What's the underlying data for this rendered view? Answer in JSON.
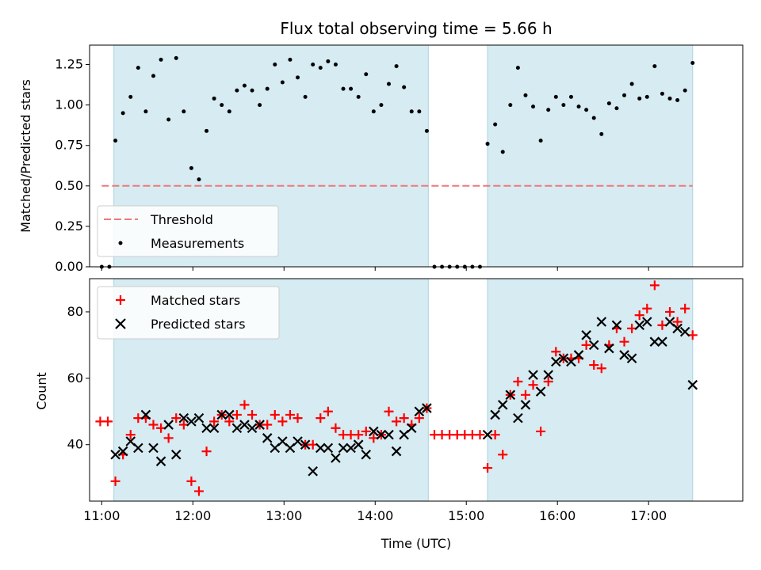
{
  "chart_data": {
    "title": "Flux total observing time = 5.66 h",
    "xlabel": "Time (UTC)",
    "xticks": [
      "11:00",
      "12:00",
      "13:00",
      "14:00",
      "15:00",
      "16:00",
      "17:00"
    ],
    "xlim": [
      "10:52",
      "18:02"
    ],
    "observing_windows": [
      {
        "start": "11:08",
        "end": "14:35"
      },
      {
        "start": "15:14",
        "end": "17:29"
      }
    ],
    "panels": [
      {
        "type": "scatter",
        "ylabel": "Matched/Predicted stars",
        "ylim": [
          0,
          1.37
        ],
        "yticks": [
          "0.00",
          "0.25",
          "0.50",
          "0.75",
          "1.00",
          "1.25"
        ],
        "threshold": {
          "name": "Threshold",
          "value": 0.5,
          "x_start": "11:00",
          "x_end": "17:29",
          "color": "#f07878"
        },
        "legend": {
          "position": "lower-left",
          "entries": [
            "Threshold",
            "Measurements"
          ]
        },
        "series": [
          {
            "name": "Measurements",
            "marker": "dot",
            "color": "#000000",
            "points": [
              [
                "11:00",
                0.0
              ],
              [
                "11:05",
                0.0
              ],
              [
                "11:09",
                0.78
              ],
              [
                "11:14",
                0.95
              ],
              [
                "11:19",
                1.05
              ],
              [
                "11:24",
                1.23
              ],
              [
                "11:29",
                0.96
              ],
              [
                "11:34",
                1.18
              ],
              [
                "11:39",
                1.28
              ],
              [
                "11:44",
                0.91
              ],
              [
                "11:49",
                1.29
              ],
              [
                "11:54",
                0.96
              ],
              [
                "11:59",
                0.61
              ],
              [
                "12:04",
                0.54
              ],
              [
                "12:09",
                0.84
              ],
              [
                "12:14",
                1.04
              ],
              [
                "12:19",
                1.0
              ],
              [
                "12:24",
                0.96
              ],
              [
                "12:29",
                1.09
              ],
              [
                "12:34",
                1.12
              ],
              [
                "12:39",
                1.09
              ],
              [
                "12:44",
                1.0
              ],
              [
                "12:49",
                1.1
              ],
              [
                "12:54",
                1.25
              ],
              [
                "12:59",
                1.14
              ],
              [
                "13:04",
                1.28
              ],
              [
                "13:09",
                1.17
              ],
              [
                "13:14",
                1.05
              ],
              [
                "13:19",
                1.25
              ],
              [
                "13:24",
                1.23
              ],
              [
                "13:29",
                1.27
              ],
              [
                "13:34",
                1.25
              ],
              [
                "13:39",
                1.1
              ],
              [
                "13:44",
                1.1
              ],
              [
                "13:49",
                1.05
              ],
              [
                "13:54",
                1.19
              ],
              [
                "13:59",
                0.96
              ],
              [
                "14:04",
                1.0
              ],
              [
                "14:09",
                1.13
              ],
              [
                "14:14",
                1.24
              ],
              [
                "14:19",
                1.11
              ],
              [
                "14:24",
                0.96
              ],
              [
                "14:29",
                0.96
              ],
              [
                "14:34",
                0.84
              ],
              [
                "14:39",
                0.0
              ],
              [
                "14:44",
                0.0
              ],
              [
                "14:49",
                0.0
              ],
              [
                "14:54",
                0.0
              ],
              [
                "14:59",
                0.0
              ],
              [
                "15:04",
                0.0
              ],
              [
                "15:09",
                0.0
              ],
              [
                "15:14",
                0.76
              ],
              [
                "15:19",
                0.88
              ],
              [
                "15:24",
                0.71
              ],
              [
                "15:29",
                1.0
              ],
              [
                "15:34",
                1.23
              ],
              [
                "15:39",
                1.06
              ],
              [
                "15:44",
                0.99
              ],
              [
                "15:49",
                0.78
              ],
              [
                "15:54",
                0.97
              ],
              [
                "15:59",
                1.05
              ],
              [
                "16:04",
                1.0
              ],
              [
                "16:09",
                1.05
              ],
              [
                "16:14",
                0.99
              ],
              [
                "16:19",
                0.97
              ],
              [
                "16:24",
                0.92
              ],
              [
                "16:29",
                0.82
              ],
              [
                "16:34",
                1.01
              ],
              [
                "16:39",
                0.98
              ],
              [
                "16:44",
                1.06
              ],
              [
                "16:49",
                1.13
              ],
              [
                "16:54",
                1.04
              ],
              [
                "16:59",
                1.05
              ],
              [
                "17:04",
                1.24
              ],
              [
                "17:09",
                1.07
              ],
              [
                "17:14",
                1.04
              ],
              [
                "17:19",
                1.03
              ],
              [
                "17:24",
                1.09
              ],
              [
                "17:29",
                1.26
              ]
            ]
          }
        ]
      },
      {
        "type": "scatter",
        "ylabel": "Count",
        "ylim": [
          23,
          90
        ],
        "yticks": [
          "40",
          "60",
          "80"
        ],
        "legend": {
          "position": "upper-left",
          "entries": [
            "Matched stars",
            "Predicted stars"
          ]
        },
        "series": [
          {
            "name": "Matched stars",
            "marker": "plus",
            "color": "#ff0000",
            "points": [
              [
                "10:59",
                47
              ],
              [
                "11:04",
                47
              ],
              [
                "11:09",
                29
              ],
              [
                "11:14",
                37
              ],
              [
                "11:19",
                43
              ],
              [
                "11:24",
                48
              ],
              [
                "11:29",
                48
              ],
              [
                "11:34",
                46
              ],
              [
                "11:39",
                45
              ],
              [
                "11:44",
                42
              ],
              [
                "11:49",
                48
              ],
              [
                "11:54",
                46
              ],
              [
                "11:59",
                29
              ],
              [
                "12:04",
                26
              ],
              [
                "12:09",
                38
              ],
              [
                "12:14",
                47
              ],
              [
                "12:19",
                49
              ],
              [
                "12:24",
                47
              ],
              [
                "12:29",
                49
              ],
              [
                "12:34",
                52
              ],
              [
                "12:39",
                49
              ],
              [
                "12:44",
                46
              ],
              [
                "12:49",
                46
              ],
              [
                "12:54",
                49
              ],
              [
                "12:59",
                47
              ],
              [
                "13:04",
                49
              ],
              [
                "13:09",
                48
              ],
              [
                "13:14",
                40
              ],
              [
                "13:19",
                40
              ],
              [
                "13:24",
                48
              ],
              [
                "13:29",
                50
              ],
              [
                "13:34",
                45
              ],
              [
                "13:39",
                43
              ],
              [
                "13:44",
                43
              ],
              [
                "13:49",
                43
              ],
              [
                "13:54",
                44
              ],
              [
                "13:59",
                42
              ],
              [
                "14:04",
                43
              ],
              [
                "14:09",
                50
              ],
              [
                "14:14",
                47
              ],
              [
                "14:19",
                48
              ],
              [
                "14:24",
                46
              ],
              [
                "14:29",
                48
              ],
              [
                "14:34",
                51
              ],
              [
                "14:39",
                43
              ],
              [
                "14:44",
                43
              ],
              [
                "14:49",
                43
              ],
              [
                "14:54",
                43
              ],
              [
                "14:59",
                43
              ],
              [
                "15:04",
                43
              ],
              [
                "15:09",
                43
              ],
              [
                "15:14",
                33
              ],
              [
                "15:19",
                43
              ],
              [
                "15:24",
                37
              ],
              [
                "15:29",
                55
              ],
              [
                "15:34",
                59
              ],
              [
                "15:39",
                55
              ],
              [
                "15:44",
                58
              ],
              [
                "15:49",
                44
              ],
              [
                "15:54",
                59
              ],
              [
                "15:59",
                68
              ],
              [
                "16:04",
                66
              ],
              [
                "16:09",
                66
              ],
              [
                "16:14",
                66
              ],
              [
                "16:19",
                70
              ],
              [
                "16:24",
                64
              ],
              [
                "16:29",
                63
              ],
              [
                "16:34",
                70
              ],
              [
                "16:39",
                75
              ],
              [
                "16:44",
                71
              ],
              [
                "16:49",
                75
              ],
              [
                "16:54",
                79
              ],
              [
                "16:59",
                81
              ],
              [
                "17:04",
                88
              ],
              [
                "17:09",
                76
              ],
              [
                "17:14",
                80
              ],
              [
                "17:19",
                77
              ],
              [
                "17:24",
                81
              ],
              [
                "17:29",
                73
              ]
            ]
          },
          {
            "name": "Predicted stars",
            "marker": "x",
            "color": "#000000",
            "points": [
              [
                "11:09",
                37
              ],
              [
                "11:14",
                38
              ],
              [
                "11:19",
                41
              ],
              [
                "11:24",
                39
              ],
              [
                "11:29",
                49
              ],
              [
                "11:34",
                39
              ],
              [
                "11:39",
                35
              ],
              [
                "11:44",
                46
              ],
              [
                "11:49",
                37
              ],
              [
                "11:54",
                48
              ],
              [
                "11:59",
                47
              ],
              [
                "12:04",
                48
              ],
              [
                "12:09",
                45
              ],
              [
                "12:14",
                45
              ],
              [
                "12:19",
                49
              ],
              [
                "12:24",
                49
              ],
              [
                "12:29",
                45
              ],
              [
                "12:34",
                46
              ],
              [
                "12:39",
                45
              ],
              [
                "12:44",
                46
              ],
              [
                "12:49",
                42
              ],
              [
                "12:54",
                39
              ],
              [
                "12:59",
                41
              ],
              [
                "13:04",
                39
              ],
              [
                "13:09",
                41
              ],
              [
                "13:14",
                40
              ],
              [
                "13:19",
                32
              ],
              [
                "13:24",
                39
              ],
              [
                "13:29",
                39
              ],
              [
                "13:34",
                36
              ],
              [
                "13:39",
                39
              ],
              [
                "13:44",
                39
              ],
              [
                "13:49",
                40
              ],
              [
                "13:54",
                37
              ],
              [
                "13:59",
                44
              ],
              [
                "14:04",
                43
              ],
              [
                "14:09",
                43
              ],
              [
                "14:14",
                38
              ],
              [
                "14:19",
                43
              ],
              [
                "14:24",
                45
              ],
              [
                "14:29",
                50
              ],
              [
                "14:34",
                51
              ],
              [
                "15:14",
                43
              ],
              [
                "15:19",
                49
              ],
              [
                "15:24",
                52
              ],
              [
                "15:29",
                55
              ],
              [
                "15:34",
                48
              ],
              [
                "15:39",
                52
              ],
              [
                "15:44",
                61
              ],
              [
                "15:49",
                56
              ],
              [
                "15:54",
                61
              ],
              [
                "15:59",
                65
              ],
              [
                "16:04",
                66
              ],
              [
                "16:09",
                65
              ],
              [
                "16:14",
                67
              ],
              [
                "16:19",
                73
              ],
              [
                "16:24",
                70
              ],
              [
                "16:29",
                77
              ],
              [
                "16:34",
                69
              ],
              [
                "16:39",
                76
              ],
              [
                "16:44",
                67
              ],
              [
                "16:49",
                66
              ],
              [
                "16:54",
                76
              ],
              [
                "16:59",
                77
              ],
              [
                "17:04",
                71
              ],
              [
                "17:09",
                71
              ],
              [
                "17:14",
                77
              ],
              [
                "17:19",
                75
              ],
              [
                "17:24",
                74
              ],
              [
                "17:29",
                58
              ]
            ]
          }
        ]
      }
    ]
  }
}
